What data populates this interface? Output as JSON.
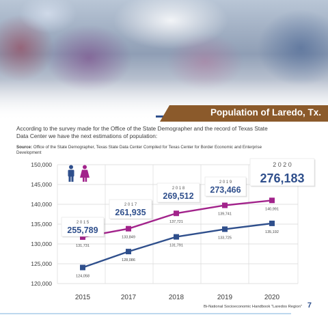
{
  "header": {
    "title": "Population of Laredo, Tx."
  },
  "intro": "According to the survey made for the Office of the State Demographer and the record of Texas State Data Center we have the next estimations of population:",
  "source": {
    "label": "Source:",
    "text": "Office of the State Demographer, Texas State Data Center Compiled for Texas Center for Border Economic and Enterprise Development"
  },
  "footer": {
    "text": "Bi-National Socioeconomic Handbook \"Laredos Region\"",
    "page": "7"
  },
  "colors": {
    "male": "#2f4f8c",
    "female": "#a2238b",
    "banner": "#8b5a2b",
    "total_text": "#2f4f8c"
  },
  "icons": [
    "male-icon",
    "female-icon"
  ],
  "chart_data": {
    "type": "line",
    "categories": [
      "2015",
      "2017",
      "2018",
      "2019",
      "2020"
    ],
    "ylim": [
      120000,
      150000
    ],
    "yticks": [
      "120,000",
      "125,000",
      "130,000",
      "135,000",
      "140,000",
      "145,000",
      "150,000"
    ],
    "grid": true,
    "series": [
      {
        "key": "female",
        "values": [
          131731,
          133849,
          137721,
          139741,
          140991
        ],
        "labels": [
          "131,731",
          "133,849",
          "137,721",
          "139,741",
          "140,991"
        ]
      },
      {
        "key": "male",
        "values": [
          124058,
          128086,
          131791,
          133725,
          135192
        ],
        "labels": [
          "124,058",
          "128,086",
          "131,791",
          "133,725",
          "135,192"
        ]
      }
    ],
    "totals": [
      {
        "year": "2 0 1 5",
        "value": "255,789"
      },
      {
        "year": "2 0 1 7",
        "value": "261,935"
      },
      {
        "year": "2 0 1 8",
        "value": "269,512"
      },
      {
        "year": "2 0 1 9",
        "value": "273,466"
      },
      {
        "year": "2 0 2 0",
        "value": "276,183"
      }
    ]
  }
}
